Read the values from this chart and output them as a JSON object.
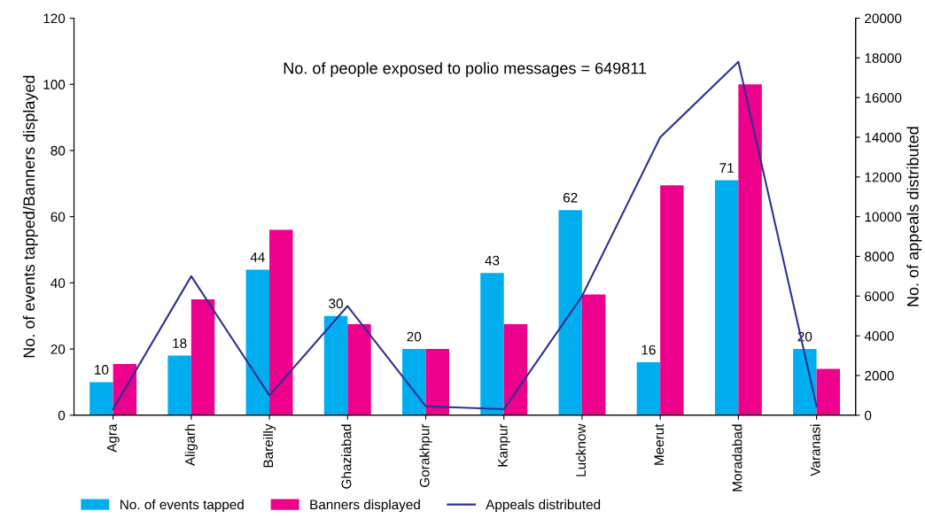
{
  "chart_data": {
    "type": "bar",
    "categories": [
      "Agra",
      "Aligarh",
      "Bareilly",
      "Ghaziabad",
      "Gorakhpur",
      "Kanpur",
      "Lucknow",
      "Meerut",
      "Moradabad",
      "Varanasi"
    ],
    "series": [
      {
        "name": "No. of events tapped",
        "color": "#00aeef",
        "values": [
          10,
          18,
          44,
          30,
          20,
          43,
          62,
          16,
          71,
          20
        ],
        "value_labels": [
          "10",
          "18",
          "44",
          "30",
          "20",
          "43",
          "62",
          "16",
          "71",
          "20"
        ]
      },
      {
        "name": "Banners displayed",
        "color": "#ec008c",
        "values": [
          15.5,
          35,
          56,
          27.5,
          20,
          27.5,
          36.5,
          69.5,
          100,
          14
        ]
      },
      {
        "name": "Appeals distributed",
        "color": "#2e3192",
        "type": "line",
        "axis": "y2",
        "values": [
          300,
          7000,
          1000,
          5500,
          450,
          300,
          6000,
          14000,
          17800,
          450
        ]
      }
    ],
    "ylabel": "No. of events tapped/Banners displayed",
    "y2label": "No. of appeals distributed",
    "ylim": [
      0,
      120
    ],
    "yticks": [
      0,
      20,
      40,
      60,
      80,
      100,
      120
    ],
    "y2lim": [
      0,
      20000
    ],
    "y2ticks": [
      0,
      2000,
      4000,
      6000,
      8000,
      10000,
      12000,
      14000,
      16000,
      18000,
      20000
    ],
    "annotations": [
      "No. of people exposed to polio messages = 649811"
    ],
    "legend": "bottom",
    "grid": false,
    "marker": "none",
    "line_style": "solid"
  }
}
